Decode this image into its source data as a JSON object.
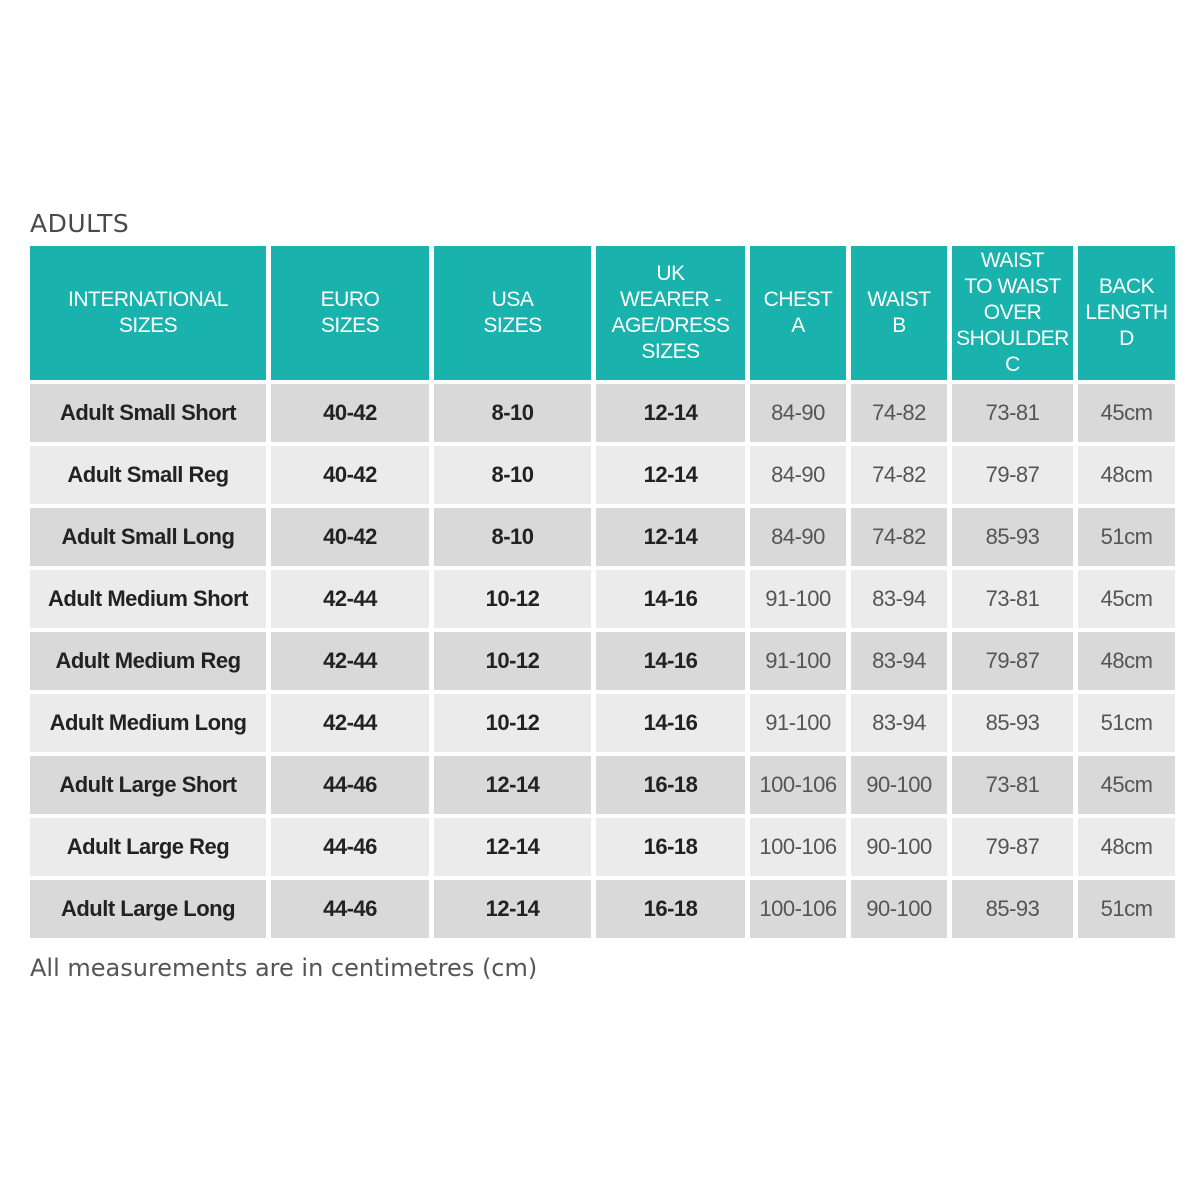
{
  "section_title": "ADULTS",
  "header_color": "#1ab2ad",
  "columns": [
    "INTERNATIONAL\nSIZES",
    "EURO\nSIZES",
    "USA\nSIZES",
    "UK\nWEARER -\nAGE/DRESS\nSIZES",
    "CHEST\nA",
    "WAIST\nB",
    "WAIST\nTO WAIST\nOVER\nSHOULDER\nC",
    "BACK\nLENGTH\nD"
  ],
  "rows": [
    [
      "Adult Small Short",
      "40-42",
      "8-10",
      "12-14",
      "84-90",
      "74-82",
      "73-81",
      "45cm"
    ],
    [
      "Adult Small Reg",
      "40-42",
      "8-10",
      "12-14",
      "84-90",
      "74-82",
      "79-87",
      "48cm"
    ],
    [
      "Adult Small Long",
      "40-42",
      "8-10",
      "12-14",
      "84-90",
      "74-82",
      "85-93",
      "51cm"
    ],
    [
      "Adult Medium Short",
      "42-44",
      "10-12",
      "14-16",
      "91-100",
      "83-94",
      "73-81",
      "45cm"
    ],
    [
      "Adult Medium Reg",
      "42-44",
      "10-12",
      "14-16",
      "91-100",
      "83-94",
      "79-87",
      "48cm"
    ],
    [
      "Adult Medium Long",
      "42-44",
      "10-12",
      "14-16",
      "91-100",
      "83-94",
      "85-93",
      "51cm"
    ],
    [
      "Adult Large Short",
      "44-46",
      "12-14",
      "16-18",
      "100-106",
      "90-100",
      "73-81",
      "45cm"
    ],
    [
      "Adult Large Reg",
      "44-46",
      "12-14",
      "16-18",
      "100-106",
      "90-100",
      "79-87",
      "48cm"
    ],
    [
      "Adult Large Long",
      "44-46",
      "12-14",
      "16-18",
      "100-106",
      "90-100",
      "85-93",
      "51cm"
    ]
  ],
  "footnote": "All measurements are in centimetres (cm)"
}
